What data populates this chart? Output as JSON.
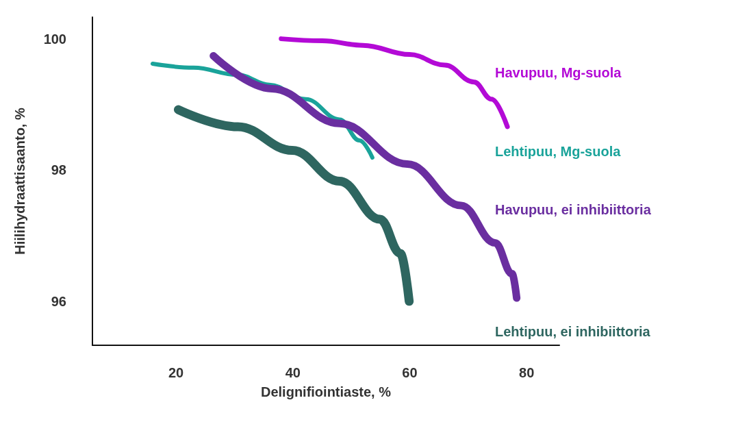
{
  "chart_data": {
    "type": "line",
    "xlabel": "Delignifiointiaste, %",
    "ylabel": "Hiilihydraattisaanto, %",
    "xlim": [
      5.7,
      85.6
    ],
    "xticks": [
      20,
      40,
      60,
      80
    ],
    "ylim": [
      95.33,
      100.33
    ],
    "yticks": [
      96,
      98,
      100
    ],
    "grid": false,
    "legend": false,
    "marker": "none",
    "line_style": "solid",
    "series": [
      {
        "name": "Havupuu, Mg-suola",
        "color": "#b30ad6",
        "x": [
          38,
          45,
          52,
          60,
          66,
          71,
          74,
          76.7
        ],
        "values": [
          100,
          99.97,
          99.9,
          99.76,
          99.6,
          99.34,
          99.08,
          98.66
        ]
      },
      {
        "name": "Lehtipuu, Mg-suola",
        "color": "#1aa39a",
        "x": [
          16,
          23,
          30.6,
          36,
          42.2,
          48,
          51.4,
          53.6
        ],
        "values": [
          99.62,
          99.56,
          99.45,
          99.3,
          99.08,
          98.77,
          98.45,
          98.19
        ]
      },
      {
        "name": "Havupuu, ei inhibiittoria",
        "color": "#6a2ea0",
        "x": [
          26.4,
          36.4,
          48,
          59.6,
          68.8,
          74.6,
          77.5,
          78.3
        ],
        "values": [
          99.74,
          99.24,
          98.71,
          98.09,
          97.46,
          96.89,
          96.42,
          96.05
        ]
      },
      {
        "name": "Lehtipuu, ei inhibiittoria",
        "color": "#2e6660",
        "x": [
          20.4,
          30.6,
          39.9,
          48,
          54.9,
          58.4,
          59.9
        ],
        "values": [
          98.92,
          98.66,
          98.3,
          97.83,
          97.25,
          96.73,
          96.0
        ]
      }
    ]
  }
}
